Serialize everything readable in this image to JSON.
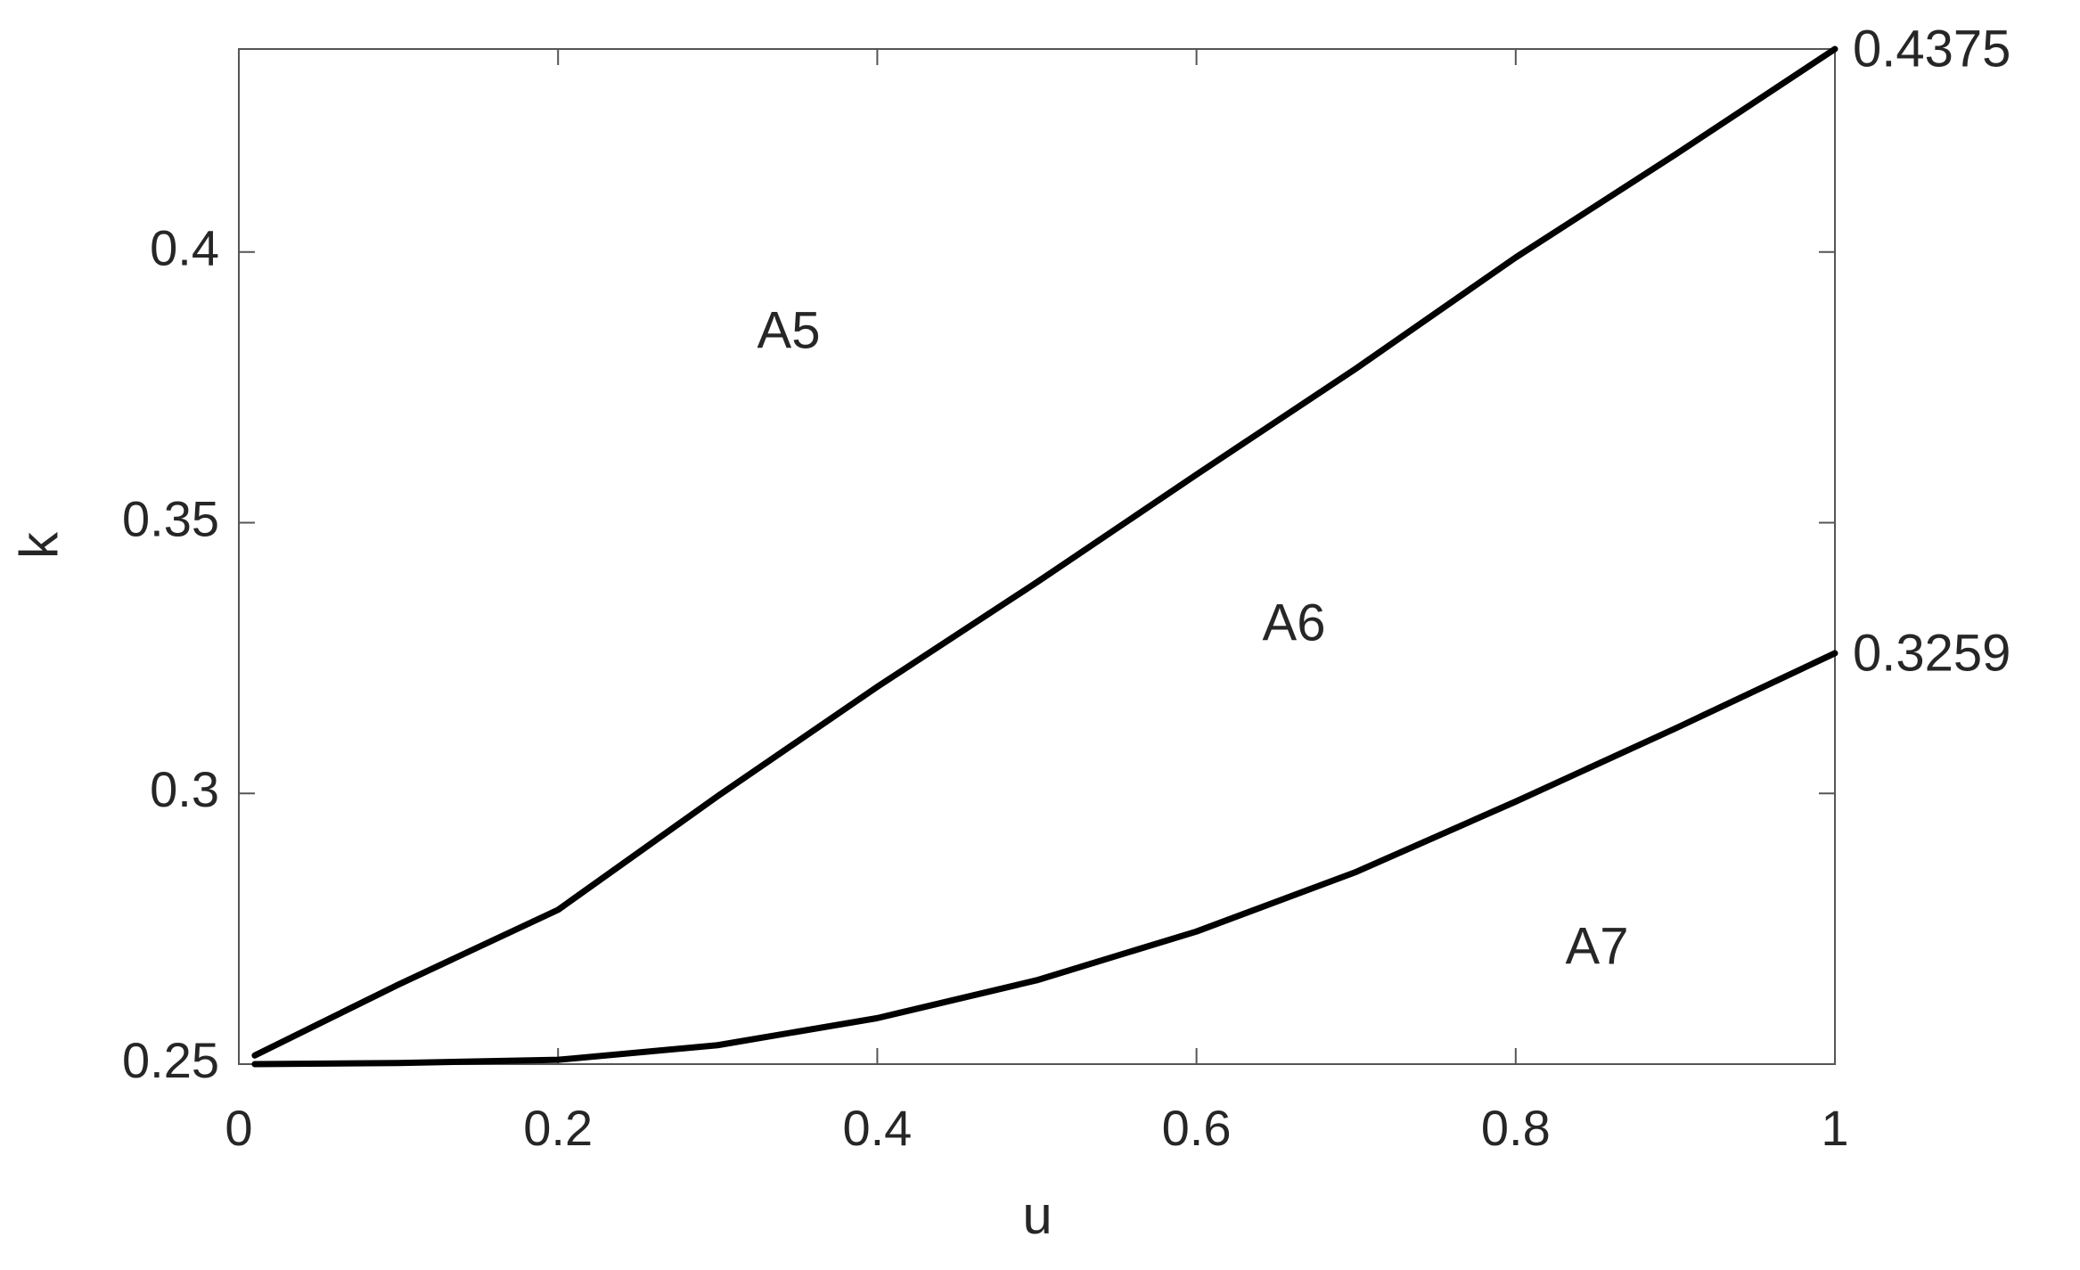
{
  "chart_data": {
    "type": "line",
    "x_label": "u",
    "y_label": "k",
    "x": [
      0.01,
      0.1,
      0.2,
      0.3,
      0.4,
      0.5,
      0.6,
      0.7,
      0.8,
      0.9,
      1.0
    ],
    "series": [
      {
        "color": "#000000",
        "values": [
          0.2516,
          0.2647,
          0.2785,
          0.2995,
          0.3197,
          0.339,
          0.3589,
          0.3785,
          0.399,
          0.418,
          0.4375
        ]
      },
      {
        "color": "#000000",
        "values": [
          0.25,
          0.2502,
          0.2508,
          0.2535,
          0.2585,
          0.2655,
          0.2745,
          0.2855,
          0.2985,
          0.312,
          0.3259
        ]
      }
    ],
    "annotations": [
      "A5",
      "A6",
      "A7"
    ],
    "xlim": [
      0,
      1
    ],
    "ylim": [
      0.25,
      0.4375
    ],
    "xticks": [
      0,
      0.2,
      0.4,
      0.6,
      0.8,
      1
    ],
    "yticks": [
      0.25,
      0.3,
      0.35,
      0.4
    ],
    "grid": false
  }
}
